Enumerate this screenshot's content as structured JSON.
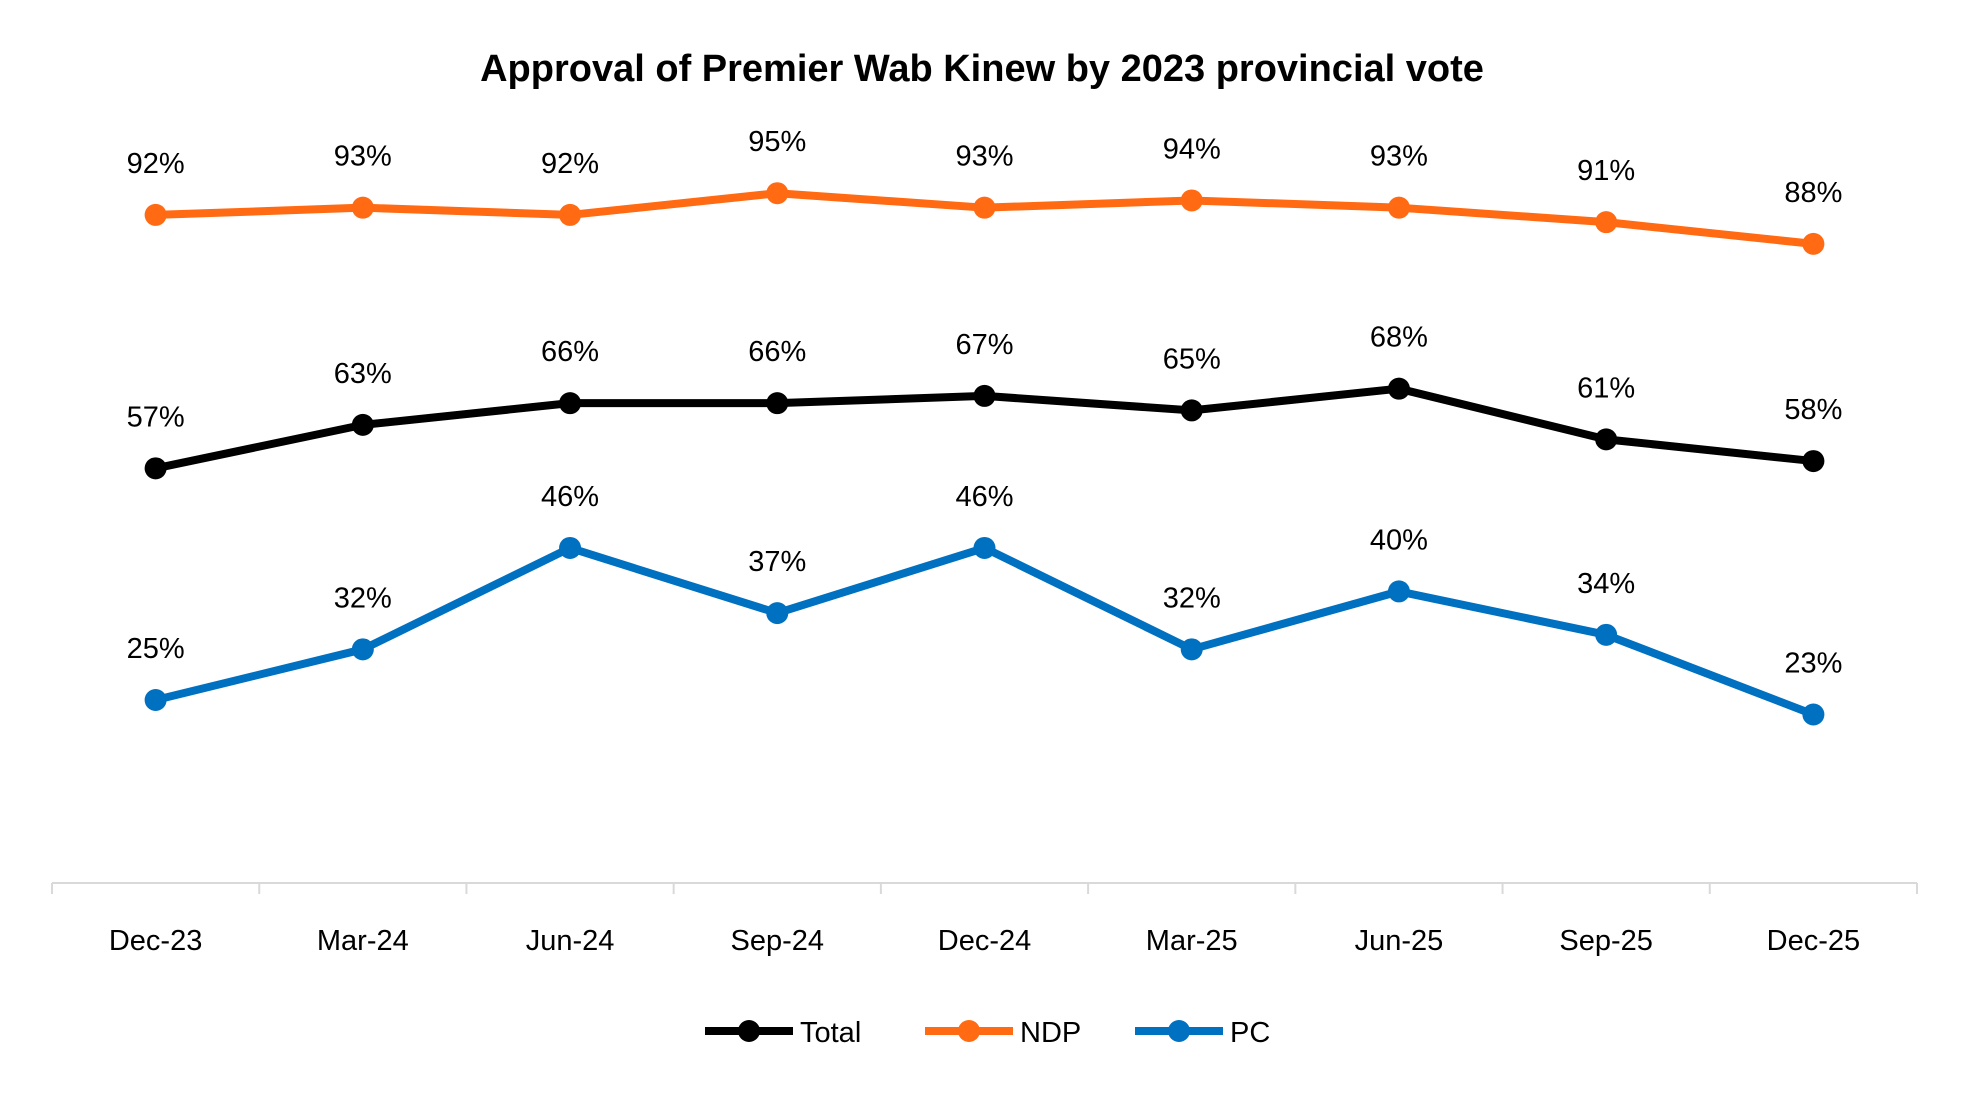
{
  "chart_data": {
    "type": "line",
    "title": "Approval of Premier Wab Kinew by 2023 provincial vote",
    "xlabel": "",
    "ylabel": "",
    "ylim": [
      0,
      100
    ],
    "grid": false,
    "legend_position": "bottom",
    "categories": [
      "Dec-23",
      "Mar-24",
      "Jun-24",
      "Sep-24",
      "Dec-24",
      "Mar-25",
      "Jun-25",
      "Sep-25",
      "Dec-25"
    ],
    "series": [
      {
        "name": "Total",
        "color": "#000000",
        "values": [
          57,
          63,
          66,
          66,
          67,
          65,
          68,
          61,
          58
        ]
      },
      {
        "name": "NDP",
        "color": "#FF6A13",
        "values": [
          92,
          93,
          92,
          95,
          93,
          94,
          93,
          91,
          88
        ]
      },
      {
        "name": "PC",
        "color": "#0070C0",
        "values": [
          25,
          32,
          46,
          37,
          46,
          32,
          40,
          34,
          23
        ]
      }
    ],
    "value_suffix": "%"
  }
}
